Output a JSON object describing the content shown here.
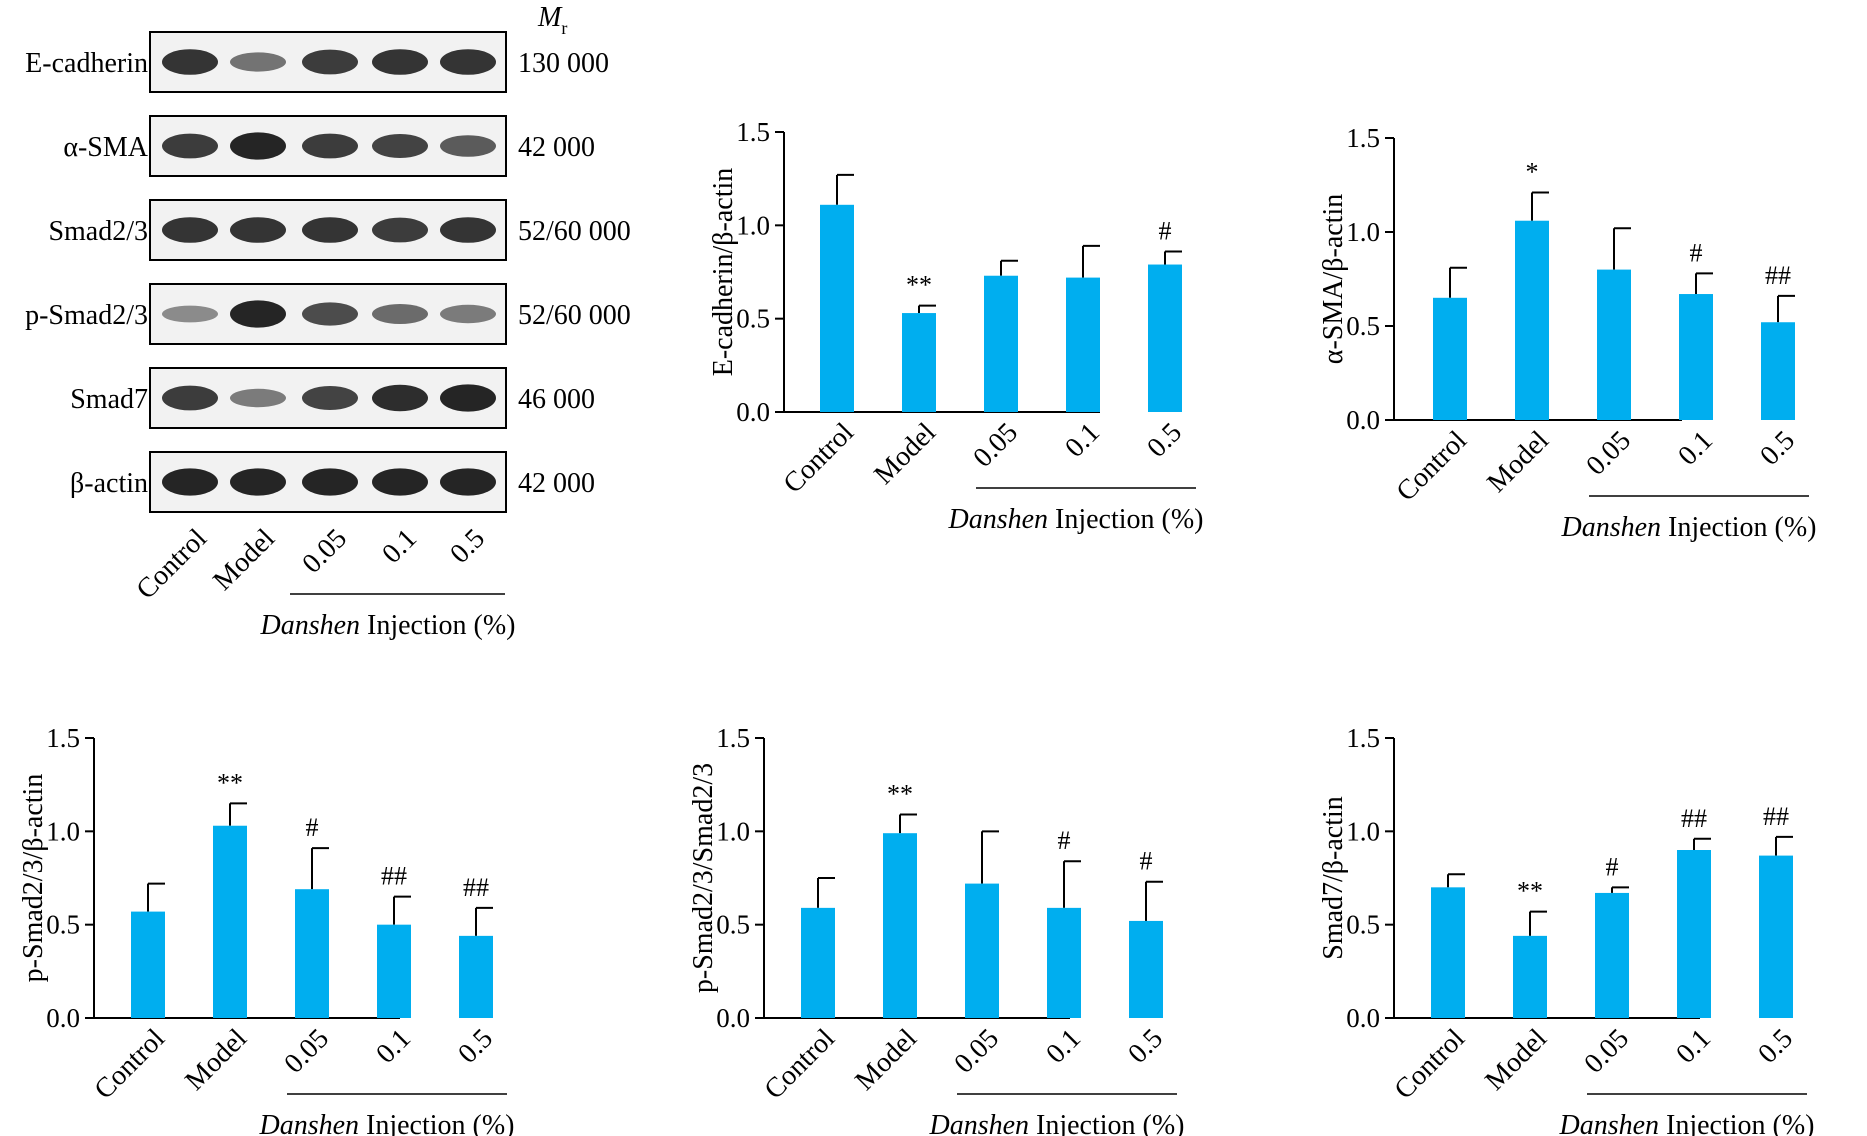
{
  "colors": {
    "bar": "#00AEEF",
    "axis": "#000000",
    "blot_bg": "#f2f2f2",
    "band": "#111111"
  },
  "blot": {
    "mr_label": "M",
    "mr_sub": "r",
    "rows": [
      {
        "label": "E-cadherin",
        "mw": "130 000",
        "intensity": [
          0.85,
          0.45,
          0.8,
          0.85,
          0.85
        ]
      },
      {
        "label": "α-SMA",
        "mw": "42 000",
        "intensity": [
          0.8,
          0.95,
          0.8,
          0.75,
          0.6
        ]
      },
      {
        "label": "Smad2/3",
        "mw": "52/60 000",
        "intensity": [
          0.85,
          0.85,
          0.85,
          0.8,
          0.85
        ]
      },
      {
        "label": "p-Smad2/3",
        "mw": "52/60 000",
        "intensity": [
          0.3,
          0.95,
          0.7,
          0.5,
          0.4
        ]
      },
      {
        "label": "Smad7",
        "mw": "46 000",
        "intensity": [
          0.8,
          0.4,
          0.75,
          0.9,
          0.95
        ]
      },
      {
        "label": "β-actin",
        "mw": "42 000",
        "intensity": [
          0.95,
          0.95,
          0.95,
          0.95,
          0.95
        ]
      }
    ],
    "lanes": [
      "Control",
      "Model",
      "0.05",
      "0.1",
      "0.5"
    ],
    "group_label_italic": "Danshen",
    "group_label_rest": " Injection (%)"
  },
  "chart_data": [
    {
      "type": "bar",
      "categories": [
        "Control",
        "Model",
        "0.05",
        "0.1",
        "0.5"
      ],
      "values": [
        1.11,
        0.53,
        0.73,
        0.72,
        0.79
      ],
      "errors": [
        0.16,
        0.04,
        0.08,
        0.17,
        0.07
      ],
      "annotations": [
        "",
        "**",
        "",
        "",
        "#"
      ],
      "ylabel": "E-cadherin/β-actin",
      "ylim": [
        0,
        1.5
      ],
      "yticks": [
        "0.0",
        "0.5",
        "1.0",
        "1.5"
      ],
      "group_label_italic": "Danshen",
      "group_label_rest": " Injection (%)"
    },
    {
      "type": "bar",
      "categories": [
        "Control",
        "Model",
        "0.05",
        "0.1",
        "0.5"
      ],
      "values": [
        0.65,
        1.06,
        0.8,
        0.67,
        0.52
      ],
      "errors": [
        0.16,
        0.15,
        0.22,
        0.11,
        0.14
      ],
      "annotations": [
        "",
        "*",
        "",
        "#",
        "##"
      ],
      "ylabel": "α-SMA/β-actin",
      "ylim": [
        0,
        1.5
      ],
      "yticks": [
        "0.0",
        "0.5",
        "1.0",
        "1.5"
      ],
      "group_label_italic": "Danshen",
      "group_label_rest": " Injection (%)"
    },
    {
      "type": "bar",
      "categories": [
        "Control",
        "Model",
        "0.05",
        "0.1",
        "0.5"
      ],
      "values": [
        0.57,
        1.03,
        0.69,
        0.5,
        0.44
      ],
      "errors": [
        0.15,
        0.12,
        0.22,
        0.15,
        0.15
      ],
      "annotations": [
        "",
        "**",
        "#",
        "##",
        "##"
      ],
      "ylabel": "p-Smad2/3/β-actin",
      "ylim": [
        0,
        1.5
      ],
      "yticks": [
        "0.0",
        "0.5",
        "1.0",
        "1.5"
      ],
      "group_label_italic": "Danshen",
      "group_label_rest": " Injection (%)"
    },
    {
      "type": "bar",
      "categories": [
        "Control",
        "Model",
        "0.05",
        "0.1",
        "0.5"
      ],
      "values": [
        0.59,
        0.99,
        0.72,
        0.59,
        0.52
      ],
      "errors": [
        0.16,
        0.1,
        0.28,
        0.25,
        0.21
      ],
      "annotations": [
        "",
        "**",
        "",
        "#",
        "#"
      ],
      "ylabel": "p-Smad2/3/Smad2/3",
      "ylim": [
        0,
        1.5
      ],
      "yticks": [
        "0.0",
        "0.5",
        "1.0",
        "1.5"
      ],
      "group_label_italic": "Danshen",
      "group_label_rest": " Injection (%)"
    },
    {
      "type": "bar",
      "categories": [
        "Control",
        "Model",
        "0.05",
        "0.1",
        "0.5"
      ],
      "values": [
        0.7,
        0.44,
        0.67,
        0.9,
        0.87
      ],
      "errors": [
        0.07,
        0.13,
        0.03,
        0.06,
        0.1
      ],
      "annotations": [
        "",
        "**",
        "#",
        "##",
        "##"
      ],
      "ylabel": "Smad7/β-actin",
      "ylim": [
        0,
        1.5
      ],
      "yticks": [
        "0.0",
        "0.5",
        "1.0",
        "1.5"
      ],
      "group_label_italic": "Danshen",
      "group_label_rest": " Injection (%)"
    }
  ]
}
